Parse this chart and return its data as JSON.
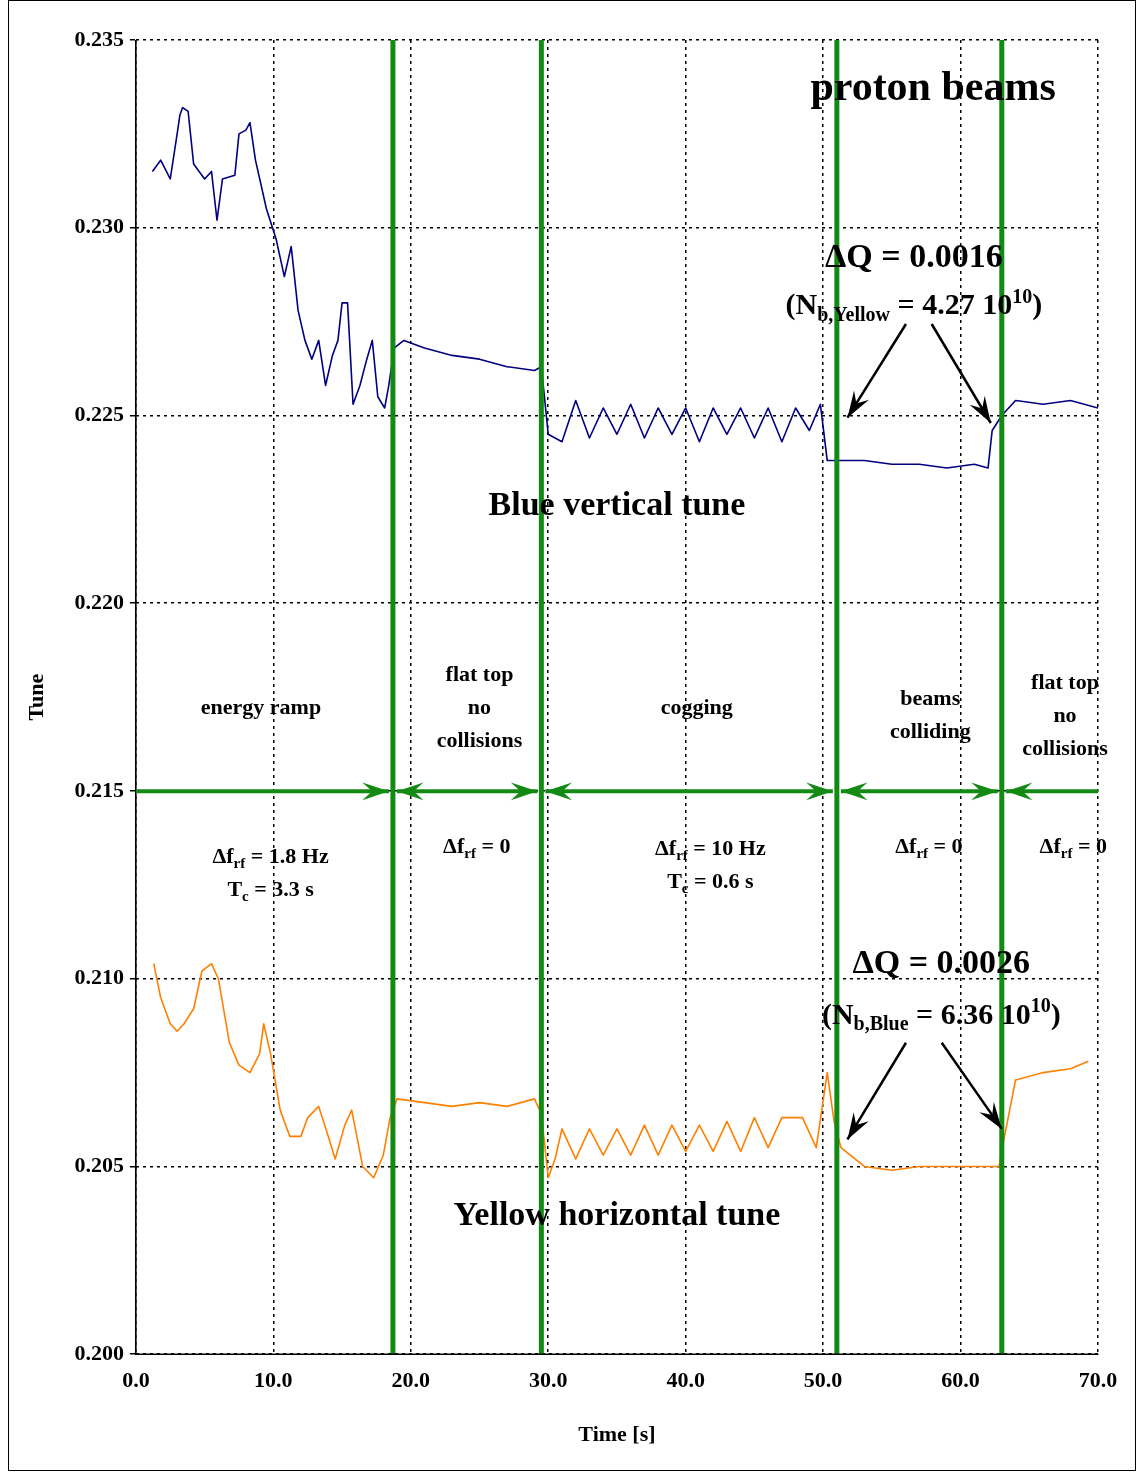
{
  "chart_data": {
    "type": "line",
    "xlabel": "Time [s]",
    "ylabel": "Tune",
    "xlim": [
      0,
      70
    ],
    "xticks": [
      {
        "value": 0,
        "label": "0.0"
      },
      {
        "value": 10,
        "label": "10.0"
      },
      {
        "value": 20,
        "label": "20.0"
      },
      {
        "value": 30,
        "label": "30.0"
      },
      {
        "value": 40,
        "label": "40.0"
      },
      {
        "value": 50,
        "label": "50.0"
      },
      {
        "value": 60,
        "label": "60.0"
      },
      {
        "value": 70,
        "label": "70.0"
      }
    ],
    "ylim": [
      0.2,
      0.235
    ],
    "yticks": [
      {
        "value": 0.2,
        "label": "0.200"
      },
      {
        "value": 0.205,
        "label": "0.205"
      },
      {
        "value": 0.21,
        "label": "0.210"
      },
      {
        "value": 0.215,
        "label": "0.215"
      },
      {
        "value": 0.22,
        "label": "0.220"
      },
      {
        "value": 0.225,
        "label": "0.225"
      },
      {
        "value": 0.23,
        "label": "0.230"
      },
      {
        "value": 0.235,
        "label": "0.235"
      }
    ],
    "grid": true,
    "legend": false,
    "marker": "none",
    "line_style": "solid",
    "series": [
      {
        "name": "Blue vertical tune",
        "color": "#000080",
        "x": [
          1.2,
          1.8,
          2.5,
          3.0,
          3.2,
          3.4,
          3.8,
          4.2,
          5.0,
          5.5,
          5.9,
          6.3,
          7.2,
          7.5,
          8.0,
          8.3,
          8.7,
          9.5,
          10.2,
          10.8,
          11.3,
          11.8,
          12.3,
          12.8,
          13.3,
          13.8,
          14.3,
          14.7,
          15.0,
          15.4,
          15.8,
          16.3,
          16.8,
          17.2,
          17.6,
          18.1,
          18.4,
          18.8,
          19.5,
          21,
          23,
          25,
          27,
          29,
          29.5,
          30,
          31,
          32,
          33,
          34,
          35,
          36,
          37,
          38,
          39,
          40,
          41,
          42,
          43,
          44,
          45,
          46,
          47,
          48,
          49,
          49.8,
          50.3,
          51,
          53,
          55,
          57,
          59,
          61,
          62,
          62.3,
          63,
          64,
          66,
          68,
          70
        ],
        "values": [
          0.2315,
          0.2318,
          0.2313,
          0.2325,
          0.233,
          0.2332,
          0.2331,
          0.2317,
          0.2313,
          0.2315,
          0.2302,
          0.2313,
          0.2314,
          0.2325,
          0.2326,
          0.2328,
          0.2318,
          0.2305,
          0.2297,
          0.2287,
          0.2295,
          0.2278,
          0.227,
          0.2265,
          0.227,
          0.2258,
          0.2266,
          0.227,
          0.228,
          0.228,
          0.2253,
          0.2258,
          0.2265,
          0.227,
          0.2255,
          0.2252,
          0.2258,
          0.2268,
          0.227,
          0.2268,
          0.2266,
          0.2265,
          0.2263,
          0.2262,
          0.2263,
          0.2245,
          0.2243,
          0.2254,
          0.2244,
          0.2252,
          0.2245,
          0.2253,
          0.2244,
          0.2252,
          0.2245,
          0.2252,
          0.2243,
          0.2252,
          0.2245,
          0.2252,
          0.2244,
          0.2252,
          0.2243,
          0.2252,
          0.2246,
          0.2253,
          0.2238,
          0.2238,
          0.2238,
          0.2237,
          0.2237,
          0.2236,
          0.2237,
          0.2236,
          0.2246,
          0.225,
          0.2254,
          0.2253,
          0.2254,
          0.2252
        ]
      },
      {
        "name": "Yellow horizontal tune",
        "color": "#ff8000",
        "x": [
          1.3,
          1.8,
          2.5,
          3.0,
          3.5,
          4.2,
          4.8,
          5.5,
          6.0,
          6.8,
          7.5,
          8.3,
          9.0,
          9.3,
          9.8,
          10.5,
          11.2,
          12,
          12.5,
          13.3,
          14,
          14.5,
          15.2,
          15.7,
          16.5,
          17.3,
          18.0,
          18.5,
          19,
          21,
          23,
          25,
          27,
          29,
          29.5,
          30,
          30.5,
          31,
          32,
          33,
          34,
          35,
          36,
          37,
          38,
          39,
          40,
          41,
          42,
          43,
          44,
          45,
          46,
          47,
          48.5,
          49.5,
          50.3,
          50.8,
          51.3,
          53,
          55,
          57,
          59,
          61,
          62.8,
          63.2,
          64,
          66,
          68,
          69.3
        ],
        "values": [
          0.2104,
          0.2095,
          0.2088,
          0.2086,
          0.2088,
          0.2092,
          0.2102,
          0.2104,
          0.21,
          0.2083,
          0.2077,
          0.2075,
          0.208,
          0.2088,
          0.208,
          0.2065,
          0.2058,
          0.2058,
          0.2063,
          0.2066,
          0.2058,
          0.2052,
          0.2061,
          0.2065,
          0.205,
          0.2047,
          0.2053,
          0.2063,
          0.2068,
          0.2067,
          0.2066,
          0.2067,
          0.2066,
          0.2068,
          0.2064,
          0.2047,
          0.2052,
          0.206,
          0.2052,
          0.206,
          0.2053,
          0.206,
          0.2053,
          0.2061,
          0.2053,
          0.2061,
          0.2054,
          0.2061,
          0.2054,
          0.2062,
          0.2054,
          0.2063,
          0.2055,
          0.2063,
          0.2063,
          0.2055,
          0.2075,
          0.2062,
          0.2055,
          0.205,
          0.2049,
          0.205,
          0.205,
          0.205,
          0.205,
          0.2058,
          0.2073,
          0.2075,
          0.2076,
          0.2078
        ]
      }
    ],
    "ref_lines": [
      {
        "axis": "x",
        "value": 18.7,
        "color": "#138a13"
      },
      {
        "axis": "x",
        "value": 29.5,
        "color": "#138a13"
      },
      {
        "axis": "x",
        "value": 51.0,
        "color": "#138a13"
      },
      {
        "axis": "x",
        "value": 63.0,
        "color": "#138a13"
      }
    ],
    "annotations": [
      "proton beams",
      "ΔQ = 0.0016",
      {
        "text": "(N$_{b,Yellow}$ = 4.27 10$^{10}$)",
        "x": 62.2,
        "y": 0.2248
      },
      "energy ramp",
      "flat top\nno\ncollisions",
      "cogging",
      "beams\ncolliding",
      "flat top\nno\ncollisions",
      "Δf$_{rf}$ = 1.8 Hz\nT$_{c}$ = 3.3 s",
      "Δf$_{rf}$ = 0",
      "Δf$_{rf}$ = 10 Hz\nT$_{c}$ = 0.6 s",
      "Δf$_{rf}$ = 0",
      "Δf$_{rf}$ = 0",
      "ΔQ = 0.0026",
      {
        "text": "(N$_{b,Blue}$ = 6.36 10$^{10}$)",
        "x": 63.0,
        "y": 0.206
      }
    ]
  }
}
